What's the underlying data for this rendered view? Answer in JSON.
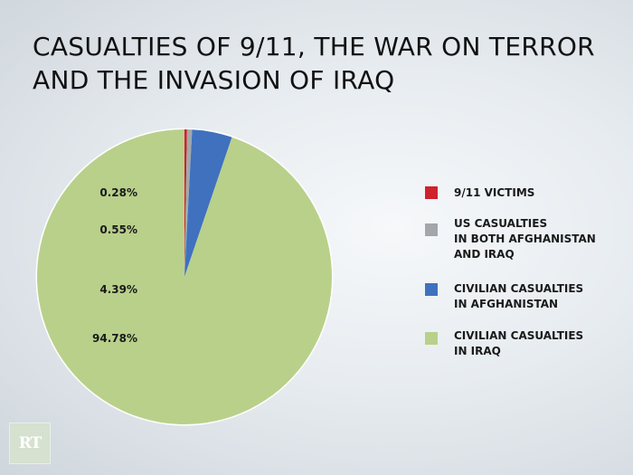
{
  "title_lines": [
    "CASUALTIES OF 9/11, THE WAR ON TERROR",
    "AND THE INVASION OF IRAQ"
  ],
  "logo_text": "RT",
  "chart_data": {
    "type": "pie",
    "title": "CASUALTIES OF 9/11, THE WAR ON TERROR AND THE INVASION OF IRAQ",
    "legend_position": "right",
    "slices": [
      {
        "pct_label": "0.28%",
        "value": 0.28,
        "label_lines": [
          "9/11 VICTIMS"
        ],
        "color": "#d0202e"
      },
      {
        "pct_label": "0.55%",
        "value": 0.55,
        "label_lines": [
          "US CASUALTIES",
          "IN BOTH AFGHANISTAN",
          "AND IRAQ"
        ],
        "color": "#a3a7ab"
      },
      {
        "pct_label": "4.39%",
        "value": 4.39,
        "label_lines": [
          "CIVILIAN CASUALTIES",
          "IN AFGHANISTAN"
        ],
        "color": "#3f71be"
      },
      {
        "pct_label": "94.78%",
        "value": 94.78,
        "label_lines": [
          "CIVILIAN CASUALTIES",
          "IN IRAQ"
        ],
        "color": "#b9d08b"
      }
    ]
  }
}
